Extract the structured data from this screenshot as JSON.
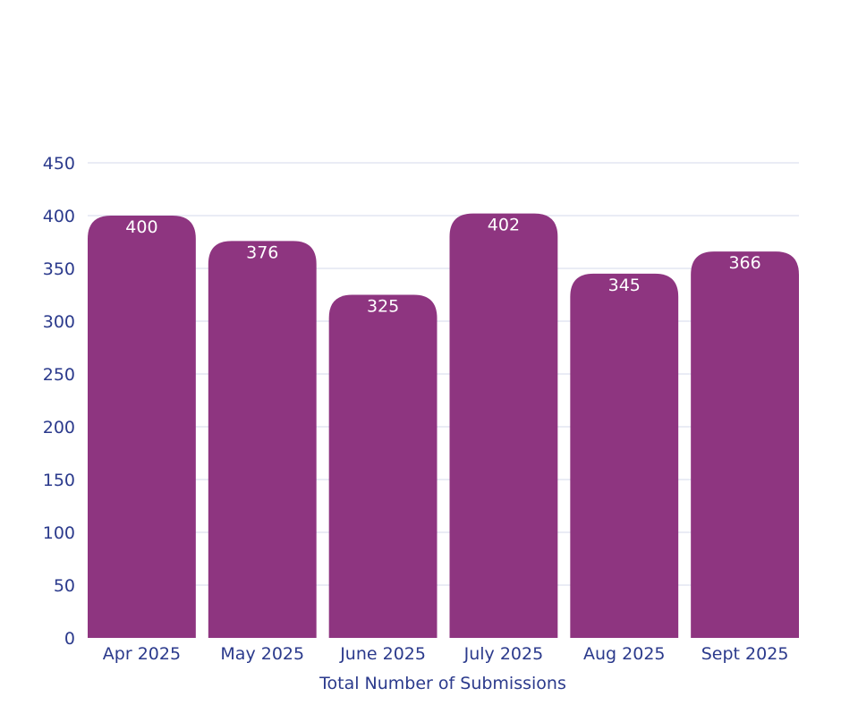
{
  "chart_data": {
    "type": "bar",
    "categories": [
      "Apr 2025",
      "May 2025",
      "June 2025",
      "July 2025",
      "Aug 2025",
      "Sept 2025"
    ],
    "values": [
      400,
      376,
      325,
      402,
      345,
      366
    ],
    "title": "",
    "xlabel": "Total Number of Submissions",
    "ylabel": "",
    "ylim": [
      0,
      450
    ],
    "yticks": [
      0,
      50,
      100,
      150,
      200,
      250,
      300,
      350,
      400,
      450
    ],
    "grid": true,
    "data_labels": true,
    "bar_color": "#8e3580",
    "text_color": "#2b3a8c",
    "grid_color": "#e4e6f2"
  }
}
